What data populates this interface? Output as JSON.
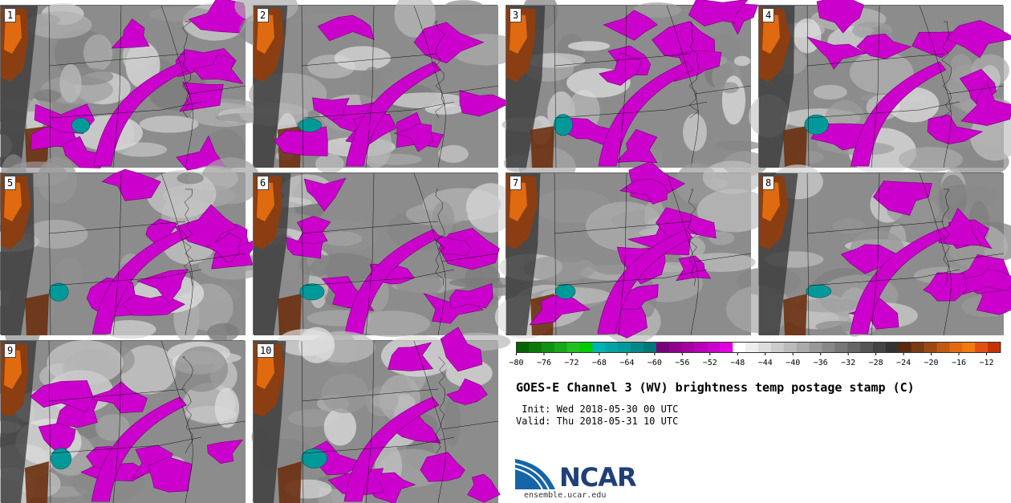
{
  "panels": [
    {
      "label": "1"
    },
    {
      "label": "2"
    },
    {
      "label": "3"
    },
    {
      "label": "4"
    },
    {
      "label": "5"
    },
    {
      "label": "6"
    },
    {
      "label": "7"
    },
    {
      "label": "8"
    },
    {
      "label": "9"
    },
    {
      "label": "10"
    }
  ],
  "colorbar": {
    "ticks": [
      "−80",
      "−76",
      "−72",
      "−68",
      "−64",
      "−60",
      "−56",
      "−52",
      "−48",
      "−44",
      "−40",
      "−36",
      "−32",
      "−28",
      "−24",
      "−20",
      "−16",
      "−12"
    ],
    "colors": [
      "#006400",
      "#0a7a0a",
      "#119111",
      "#18a818",
      "#22c022",
      "#00cc00",
      "#00b3b3",
      "#00a3a3",
      "#009999",
      "#008888",
      "#007777",
      "#7a007a",
      "#8f008f",
      "#a300a3",
      "#b800b8",
      "#cc00cc",
      "#e000e0",
      "#ffffff",
      "#eeeeee",
      "#dddddd",
      "#cccccc",
      "#bbbbbb",
      "#aaaaaa",
      "#999999",
      "#888888",
      "#777777",
      "#666666",
      "#555555",
      "#444444",
      "#333333",
      "#5a2a10",
      "#7a3a10",
      "#9a4a10",
      "#c05a10",
      "#e06a10",
      "#f07a10",
      "#e05010",
      "#c83000"
    ]
  },
  "title": "GOES-E Channel 3 (WV) brightness temp postage stamp (C)",
  "init": " Init: Wed 2018-05-30 00 UTC",
  "valid": "Valid: Thu 2018-05-31 10 UTC",
  "logo": {
    "text": "NCAR",
    "url": "ensemble.ucar.edu"
  }
}
